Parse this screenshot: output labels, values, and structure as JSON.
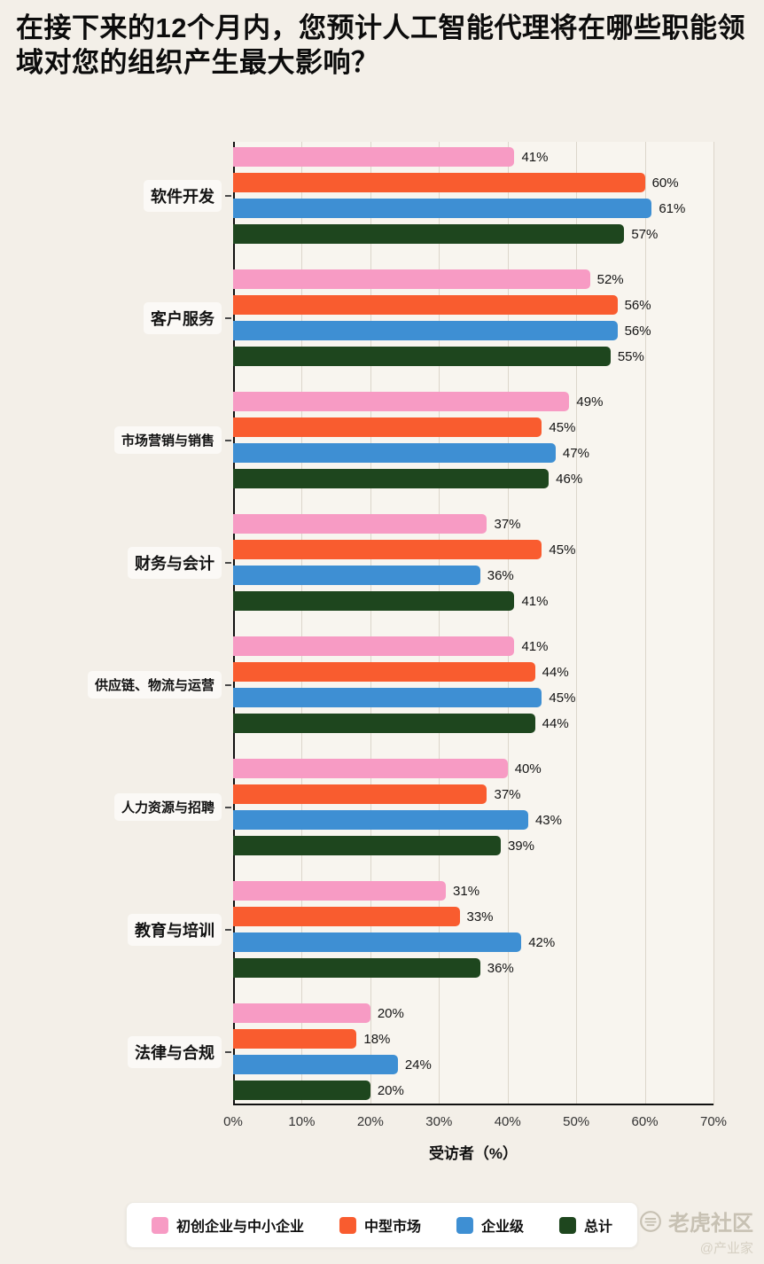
{
  "title": "在接下来的12个月内，您预计人工智能代理将在哪些职能领域对您的组织产生最大影响？",
  "chart_data": {
    "type": "bar",
    "orientation": "horizontal",
    "title": "在接下来的12个月内，您预计人工智能代理将在哪些职能领域对您的组织产生最大影响？",
    "categories": [
      "软件开发",
      "客户服务",
      "市场营销与销售",
      "财务与会计",
      "供应链、物流与运营",
      "人力资源与招聘",
      "教育与培训",
      "法律与合规"
    ],
    "series": [
      {
        "name": "初创企业与中小企业",
        "color": "#F79BC4",
        "values": [
          41,
          52,
          49,
          37,
          41,
          40,
          31,
          20
        ]
      },
      {
        "name": "中型市场",
        "color": "#F95C2F",
        "values": [
          60,
          56,
          45,
          45,
          44,
          37,
          33,
          18
        ]
      },
      {
        "name": "企业级",
        "color": "#3E8FD3",
        "values": [
          61,
          56,
          47,
          36,
          45,
          43,
          42,
          24
        ]
      },
      {
        "name": "总计",
        "color": "#1E461E",
        "values": [
          57,
          55,
          46,
          41,
          44,
          39,
          36,
          20
        ]
      }
    ],
    "xlabel": "受访者（%）",
    "xlim": [
      0,
      70
    ],
    "x_ticks": [
      "0%",
      "10%",
      "20%",
      "30%",
      "40%",
      "50%",
      "60%",
      "70%"
    ],
    "value_suffix": "%",
    "grid": true,
    "legend_position": "bottom"
  },
  "watermark": {
    "brand": "老虎社区",
    "handle": "@产业家"
  }
}
